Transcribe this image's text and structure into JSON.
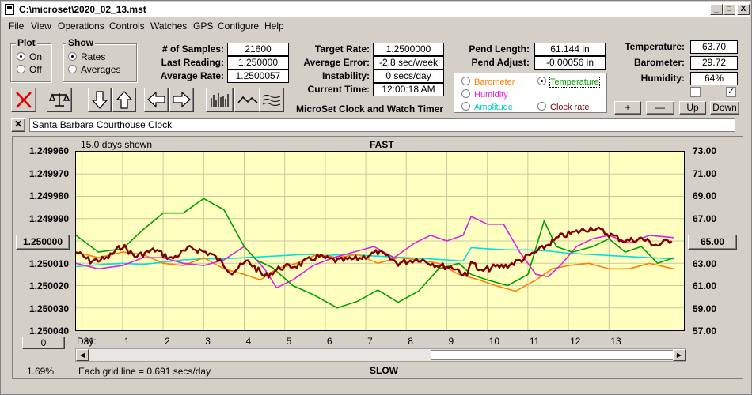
{
  "window": {
    "title": "C:\\microset\\2020_02_13.mst",
    "buttons": {
      "minimize": "_",
      "maximize": "□",
      "close": "X"
    }
  },
  "menu": [
    "File",
    "View",
    "Operations",
    "Controls",
    "Watches",
    "GPS",
    "Configure",
    "Help"
  ],
  "plot_group": {
    "title": "Plot",
    "on": "On",
    "off": "Off",
    "selected": "On"
  },
  "show_group": {
    "title": "Show",
    "rates": "Rates",
    "averages": "Averages",
    "selected": "Rates"
  },
  "stats": {
    "samples_label": "# of Samples:",
    "samples": "21600",
    "last_reading_label": "Last Reading:",
    "last_reading": "1.250000",
    "average_rate_label": "Average Rate:",
    "average_rate": "1.2500057",
    "target_rate_label": "Target Rate:",
    "target_rate": "1.2500000",
    "average_error_label": "Average Error:",
    "average_error": "-2.8 sec/week",
    "instability_label": "Instability:",
    "instability": "0 secs/day",
    "current_time_label": "Current Time:",
    "current_time": "12:00:18 AM",
    "pend_length_label": "Pend Length:",
    "pend_length": "61.144 in",
    "pend_adjust_label": "Pend Adjust:",
    "pend_adjust": "-0.00056 in"
  },
  "app_caption": "MicroSet Clock and Watch Timer",
  "sensors": {
    "temperature_label": "Temperature:",
    "temperature": "63.70",
    "barometer_label": "Barometer:",
    "barometer": "29.72",
    "humidity_label": "Humidity:",
    "humidity": "64%"
  },
  "sensor_select": {
    "barometer": "Barometer",
    "temperature": "Temperature",
    "humidity": "Humidity",
    "amplitude": "Amplitude",
    "clock_rate": "Clock rate",
    "selected": "Temperature"
  },
  "scale_buttons": {
    "plus": "+",
    "minus": "—",
    "up": "Up",
    "down": "Down"
  },
  "clock_name": "Santa Barbara Courthouse Clock",
  "chart_header": {
    "days_shown": "15.0 days shown",
    "fast": "FAST",
    "slow": "SLOW"
  },
  "left_value_button": "1.250000",
  "right_value_button": "65.00",
  "zero_button": "0",
  "footer": {
    "percent": "1.69%",
    "grid_note": "Each grid line = 0.691 secs/day",
    "day_label": "Day:"
  },
  "colors": {
    "plot_bg": "#ffffc0",
    "rate": "#800000",
    "temperature": "#00a000",
    "barometer": "#ff8000",
    "humidity": "#e020e0",
    "amplitude": "#00e0e0",
    "delete": "#e00000"
  },
  "icons": [
    "delete-x-icon",
    "balance-scale-icon",
    "arrow-down-icon",
    "arrow-up-icon",
    "arrow-left-icon",
    "arrow-right-icon",
    "bar-graph-icon",
    "wave-icon",
    "multi-wave-icon"
  ],
  "chart_data": {
    "type": "line",
    "y_left_ticks": [
      "1.249960",
      "1.249970",
      "1.249980",
      "1.249990",
      "1.250000",
      "1.250010",
      "1.250020",
      "1.250030",
      "1.250040"
    ],
    "y_right_ticks": [
      "73.00",
      "71.00",
      "69.00",
      "67.00",
      "65.00",
      "63.00",
      "61.00",
      "59.00",
      "57.00"
    ],
    "y_left_range": [
      1.24996,
      1.25004
    ],
    "y_right_range": [
      57,
      73
    ],
    "x_ticks": [
      "31",
      "1",
      "2",
      "3",
      "4",
      "5",
      "6",
      "7",
      "8",
      "9",
      "10",
      "11",
      "12",
      "13"
    ],
    "x_range_days": [
      -1.15,
      13.85
    ],
    "grid": true,
    "series": [
      {
        "key": "rate",
        "x": [
          -1.15,
          -0.8,
          -0.4,
          0,
          0.3,
          0.8,
          1.2,
          1.7,
          2.2,
          2.7,
          3.1,
          3.5,
          3.9,
          4.3,
          4.8,
          5.3,
          5.8,
          6.3,
          6.8,
          7.3,
          7.8,
          8.2,
          8.5,
          8.6,
          8.8,
          9.1,
          9.5,
          9.9,
          10.3,
          10.8,
          11.2,
          11.6,
          12.0,
          12.4,
          12.8,
          13.2,
          13.6
        ],
        "y": [
          1.250005,
          1.250009,
          1.250008,
          1.250002,
          1.250007,
          1.250004,
          1.250008,
          1.250003,
          1.250006,
          1.250014,
          1.250009,
          1.250016,
          1.250012,
          1.250011,
          1.250007,
          1.250009,
          1.250008,
          1.250005,
          1.25001,
          1.250008,
          1.250011,
          1.250012,
          1.250016,
          1.250008,
          1.250014,
          1.250012,
          1.250011,
          1.250008,
          1.250004,
          1.249998,
          1.249996,
          1.249994,
          1.249997,
          1.25,
          1.249999,
          1.250002,
          1.249999
        ]
      },
      {
        "key": "temperature",
        "x": [
          -1.15,
          -0.6,
          0,
          0.5,
          1.0,
          1.5,
          2.0,
          2.5,
          3.0,
          3.3,
          3.7,
          4.2,
          4.7,
          5.3,
          5.8,
          6.3,
          6.8,
          7.3,
          7.8,
          8.3,
          8.6,
          9.0,
          9.5,
          10.0,
          10.4,
          10.7,
          11.1,
          11.6,
          12.0,
          12.4,
          12.8,
          13.2,
          13.6
        ],
        "y": [
          65.5,
          64.0,
          64.3,
          66.0,
          67.5,
          67.5,
          68.8,
          67.8,
          64.5,
          63.3,
          62.6,
          61.0,
          60.2,
          59.0,
          59.6,
          60.6,
          59.5,
          60.5,
          62.5,
          63.0,
          62.0,
          61.5,
          61.0,
          62.0,
          66.8,
          64.5,
          64.0,
          64.5,
          65.2,
          64.0,
          64.5,
          63.0,
          63.5
        ]
      },
      {
        "key": "barometer",
        "x": [
          -1.15,
          -0.6,
          0,
          0.5,
          1.0,
          1.5,
          2.0,
          2.5,
          3.0,
          3.4,
          3.8,
          4.3,
          4.8,
          5.3,
          5.8,
          6.3,
          6.8,
          7.3,
          7.8,
          8.3,
          8.8,
          9.2,
          9.7,
          10.2,
          10.6,
          11.0,
          11.5,
          12.0,
          12.5,
          13.0,
          13.6
        ],
        "y": [
          64.0,
          63.5,
          64.0,
          63.8,
          63.0,
          62.8,
          63.5,
          62.5,
          62.0,
          61.5,
          62.5,
          63.0,
          63.8,
          63.5,
          63.8,
          63.0,
          63.5,
          63.3,
          63.0,
          62.0,
          61.5,
          61.0,
          60.5,
          61.5,
          62.5,
          62.8,
          63.0,
          62.5,
          62.5,
          63.0,
          62.5
        ]
      },
      {
        "key": "humidity",
        "x": [
          -1.15,
          -0.6,
          0,
          0.5,
          1.0,
          1.5,
          2.0,
          2.5,
          3.0,
          3.5,
          3.8,
          4.2,
          4.7,
          5.2,
          5.7,
          6.2,
          6.7,
          7.2,
          7.6,
          8.0,
          8.4,
          8.6,
          9.0,
          9.4,
          9.8,
          10.2,
          10.5,
          10.8,
          11.2,
          11.6,
          12.0,
          12.5,
          13.0,
          13.6
        ],
        "y": [
          63.0,
          62.5,
          62.8,
          63.5,
          63.5,
          63.0,
          62.8,
          63.3,
          64.5,
          62.5,
          60.8,
          61.5,
          62.8,
          63.5,
          64.0,
          64.5,
          63.5,
          64.8,
          65.5,
          65.0,
          65.5,
          67.2,
          66.5,
          66.5,
          64.0,
          62.0,
          61.8,
          62.8,
          64.5,
          65.2,
          65.5,
          64.8,
          65.5,
          65.3
        ]
      },
      {
        "key": "amplitude",
        "x": [
          -1.15,
          -0.5,
          0,
          0.5,
          1.0,
          1.5,
          2.0,
          2.5,
          3.0,
          3.5,
          4.0,
          4.5,
          5.0,
          5.5,
          6.0,
          6.5,
          7.0,
          7.5,
          8.0,
          8.4,
          8.6,
          9.0,
          9.5,
          10.0,
          10.5,
          11.0,
          11.5,
          12.0,
          12.5,
          13.0,
          13.6
        ],
        "y": [
          62.7,
          62.9,
          63.0,
          62.9,
          63.1,
          63.3,
          63.4,
          63.4,
          63.5,
          63.6,
          63.7,
          63.8,
          63.7,
          63.8,
          63.7,
          63.6,
          63.5,
          63.4,
          63.3,
          63.2,
          64.4,
          64.3,
          64.2,
          64.2,
          64.1,
          63.9,
          63.8,
          63.7,
          63.6,
          63.5,
          63.4
        ]
      }
    ]
  }
}
